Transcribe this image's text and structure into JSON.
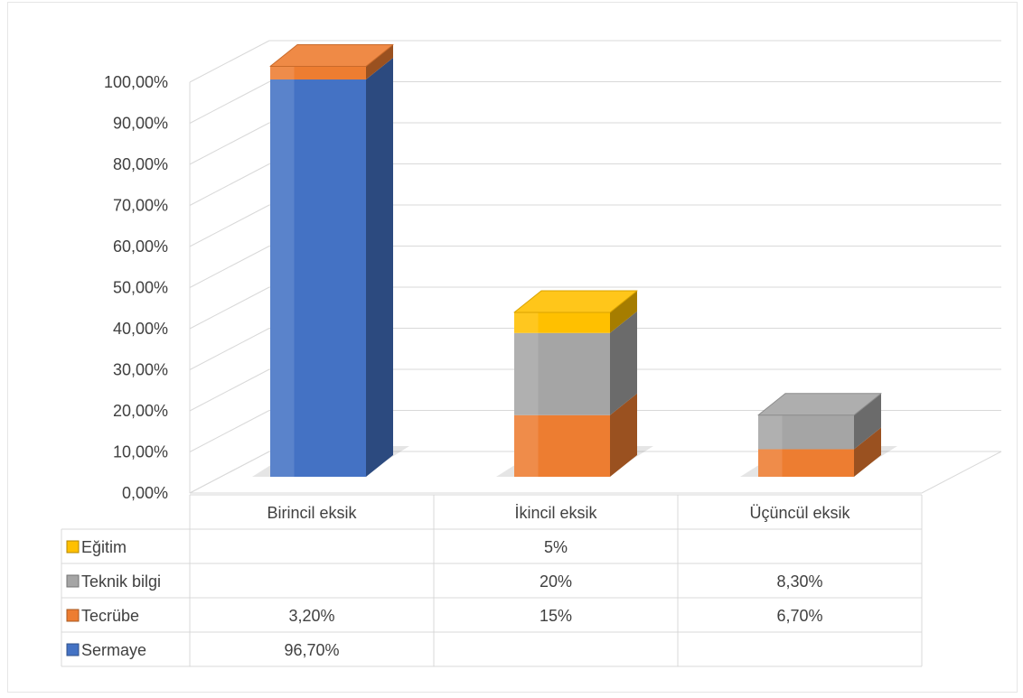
{
  "chart_data": {
    "type": "bar",
    "stacked": true,
    "three_d": true,
    "categories": [
      "Birincil eksik",
      "İkincil eksik",
      "Üçüncül eksik"
    ],
    "series": [
      {
        "name": "Sermaye",
        "color": "#4472C4",
        "values": [
          96.7,
          null,
          null
        ],
        "labels": [
          "96,70%",
          "",
          ""
        ]
      },
      {
        "name": "Tecrübe",
        "color": "#ED7D31",
        "values": [
          3.2,
          15,
          6.7
        ],
        "labels": [
          "3,20%",
          "15%",
          "6,70%"
        ]
      },
      {
        "name": "Teknik bilgi",
        "color": "#A5A5A5",
        "values": [
          null,
          20,
          8.3
        ],
        "labels": [
          "",
          "20%",
          "8,30%"
        ]
      },
      {
        "name": "Eğitim",
        "color": "#FFC000",
        "values": [
          null,
          5,
          null
        ],
        "labels": [
          "",
          "5%",
          ""
        ]
      }
    ],
    "ylim": [
      0,
      100
    ],
    "yticks": [
      "0,00%",
      "10,00%",
      "20,00%",
      "30,00%",
      "40,00%",
      "50,00%",
      "60,00%",
      "70,00%",
      "80,00%",
      "90,00%",
      "100,00%"
    ],
    "table_row_order": [
      "Eğitim",
      "Teknik bilgi",
      "Tecrübe",
      "Sermaye"
    ],
    "legend": "data-table",
    "grid": true
  }
}
